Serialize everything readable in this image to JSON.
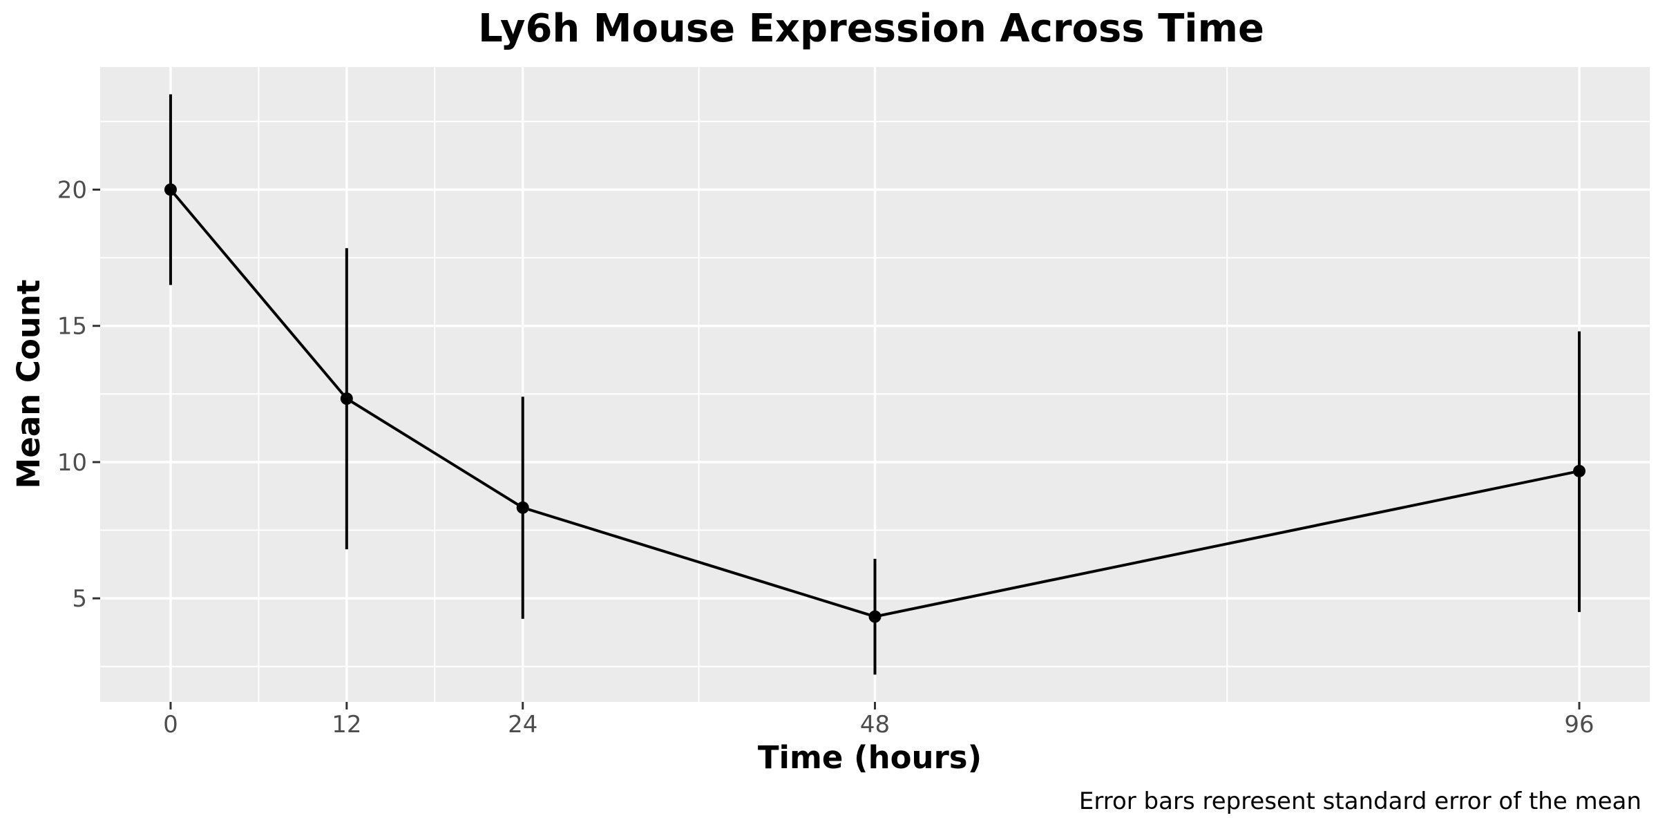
{
  "chart_data": {
    "type": "line",
    "title": "Ly6h Mouse Expression Across Time",
    "xlabel": "Time (hours)",
    "ylabel": "Mean Count",
    "caption": "Error bars represent standard error of the mean",
    "x": [
      0,
      12,
      24,
      48,
      96
    ],
    "x_ticks": [
      "0",
      "12",
      "24",
      "48",
      "96"
    ],
    "y_ticks": [
      "5",
      "10",
      "15",
      "20"
    ],
    "xlim": [
      -4.8,
      100.8
    ],
    "ylim": [
      1.2,
      24.5
    ],
    "grid": true,
    "legend": "none",
    "series": [
      {
        "values": [
          20.0,
          12.33,
          8.33,
          4.33,
          9.67
        ],
        "error_lower": [
          16.5,
          6.8,
          4.25,
          2.2,
          4.5
        ],
        "error_upper": [
          23.5,
          17.85,
          12.4,
          6.45,
          14.8
        ]
      }
    ],
    "colors": {
      "panel": "#ebebeb",
      "grid": "#ffffff",
      "line": "#000000",
      "tick_text": "#4d4d4d"
    }
  }
}
